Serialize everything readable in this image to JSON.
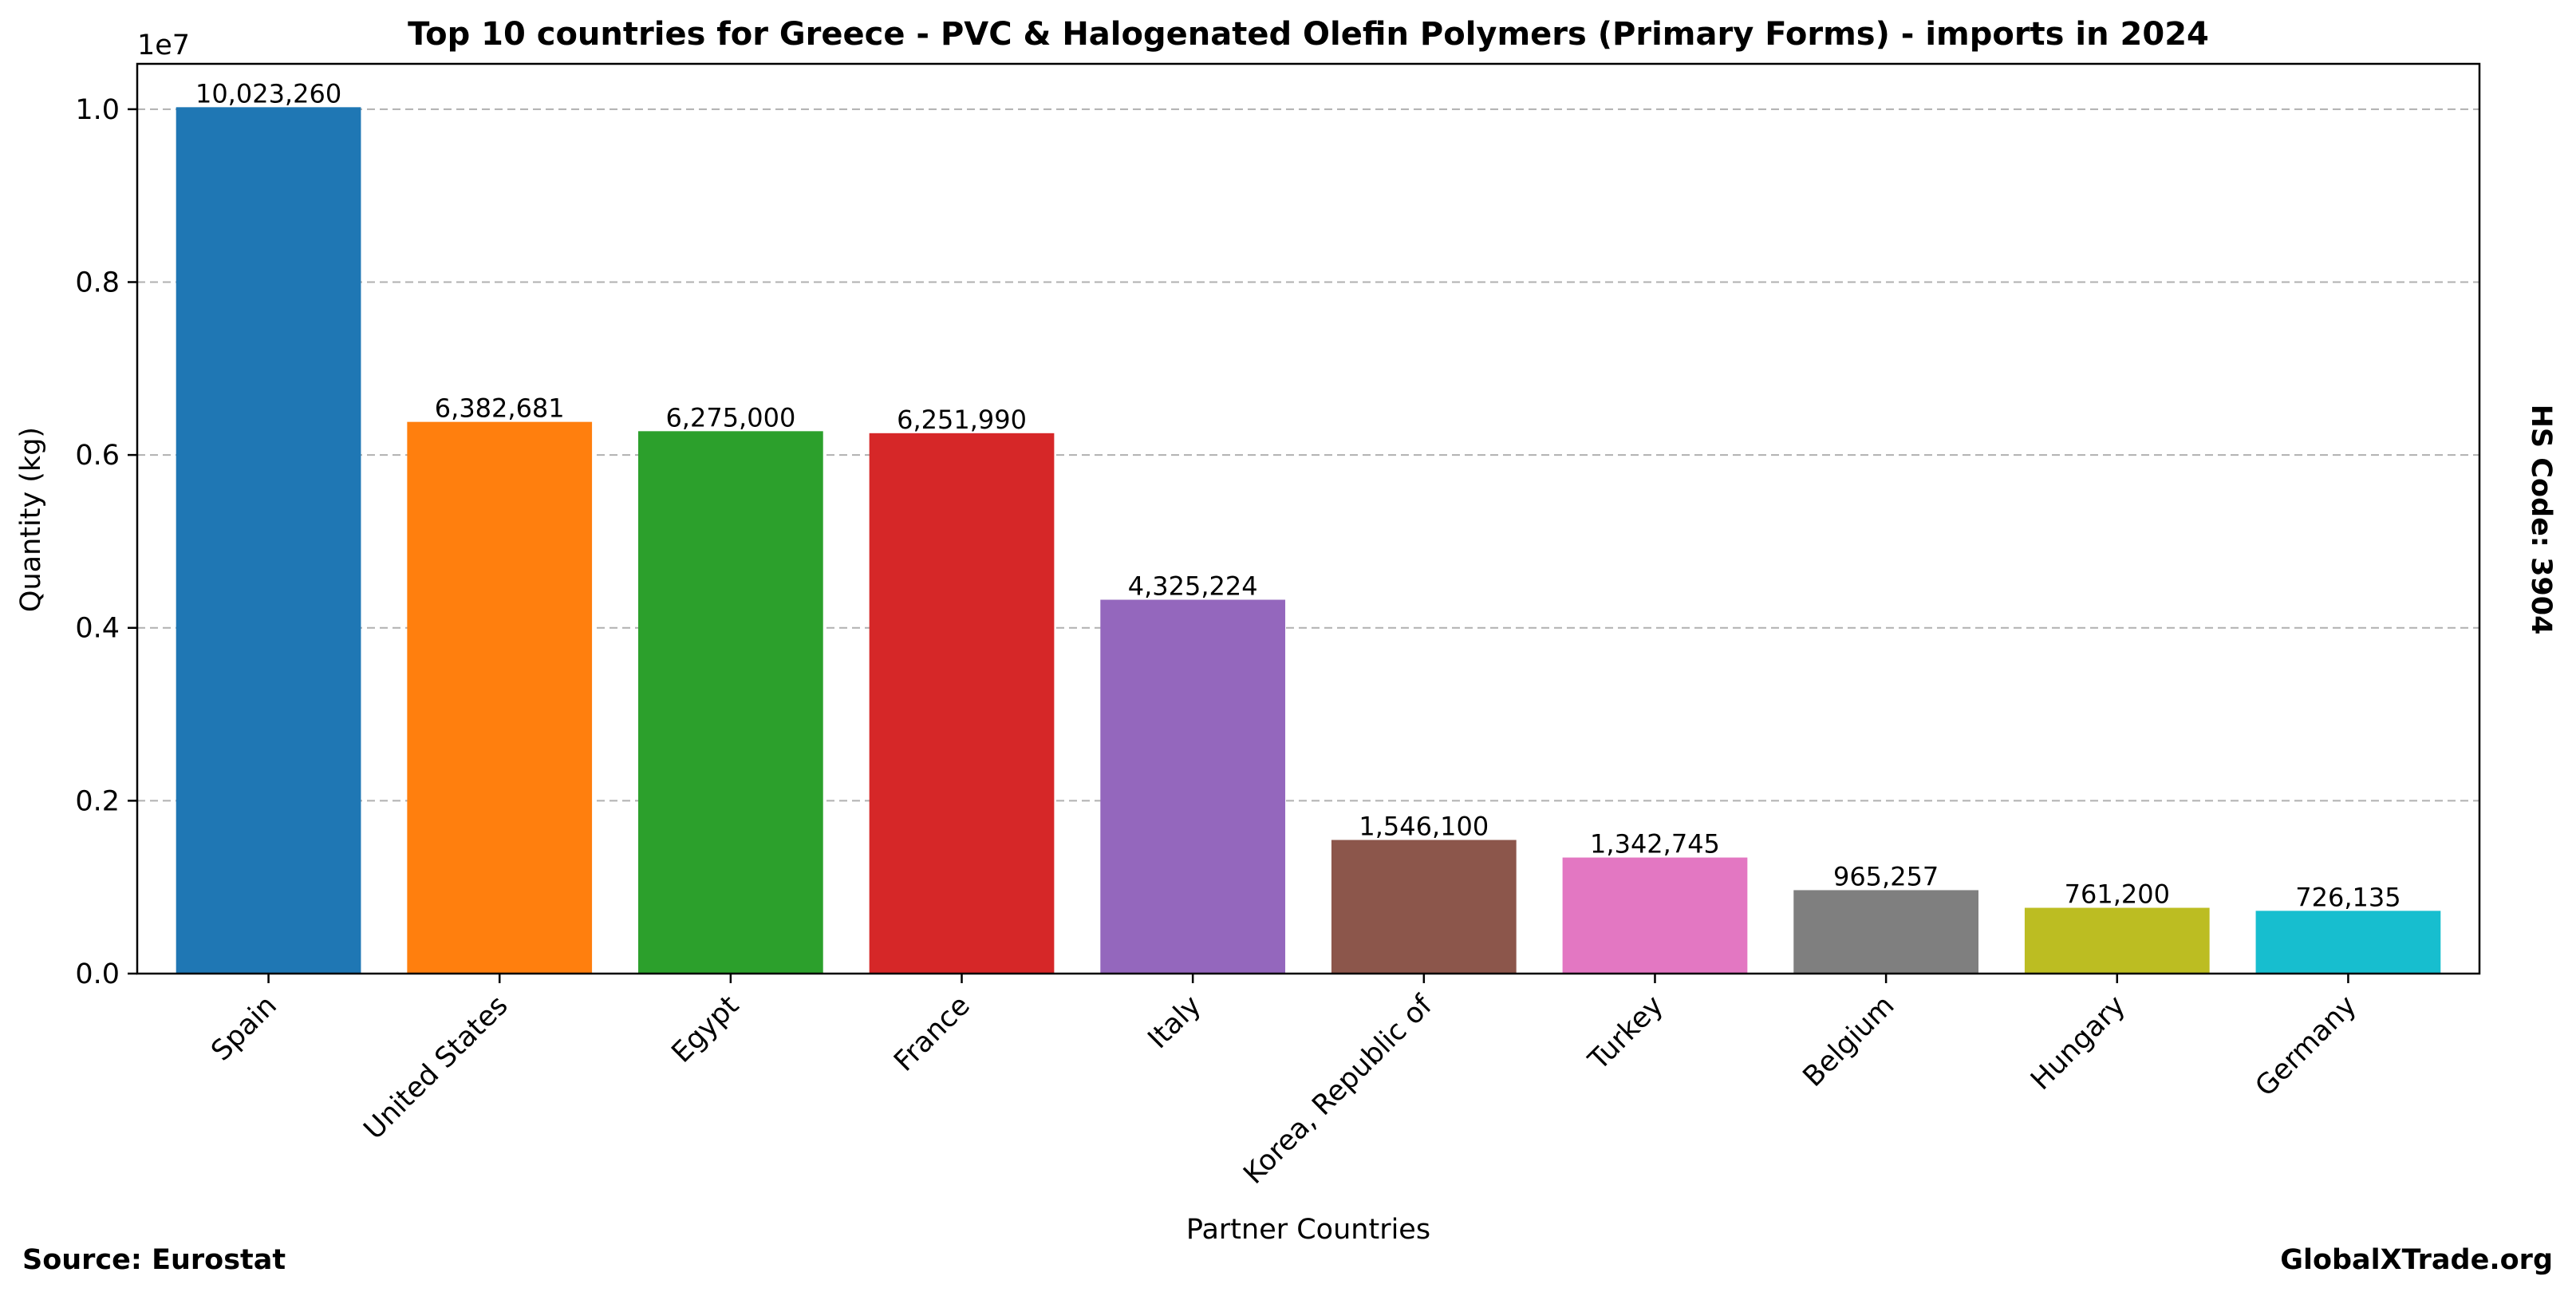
{
  "chart_data": {
    "type": "bar",
    "title": "Top 10 countries for Greece - PVC & Halogenated Olefin Polymers (Primary Forms) - imports in 2024",
    "xlabel": "Partner Countries",
    "ylabel": "Quantity (kg)",
    "y_scale_label": "1e7",
    "y_ticks": [
      0.0,
      0.2,
      0.4,
      0.6,
      0.8,
      1.0
    ],
    "y_tick_labels": [
      "0.0",
      "0.2",
      "0.4",
      "0.6",
      "0.8",
      "1.0"
    ],
    "ylim": [
      0,
      10524923
    ],
    "grid": "horizontal dashed",
    "categories": [
      "Spain",
      "United States",
      "Egypt",
      "France",
      "Italy",
      "Korea, Republic of",
      "Turkey",
      "Belgium",
      "Hungary",
      "Germany"
    ],
    "values": [
      10023260,
      6382681,
      6275000,
      6251990,
      4325224,
      1546100,
      1342745,
      965257,
      761200,
      726135
    ],
    "data_labels": [
      "10,023,260",
      "6,382,681",
      "6,275,000",
      "6,251,990",
      "4,325,224",
      "1,546,100",
      "1,342,745",
      "965,257",
      "761,200",
      "726,135"
    ],
    "colors": [
      "#1f77b4",
      "#ff7f0e",
      "#2ca02c",
      "#d62728",
      "#9467bd",
      "#8c564b",
      "#e377c2",
      "#7f7f7f",
      "#bcbd22",
      "#17becf"
    ],
    "side_note": "HS Code: 3904",
    "source": "Source: Eurostat",
    "watermark": "GlobalXTrade.org"
  }
}
